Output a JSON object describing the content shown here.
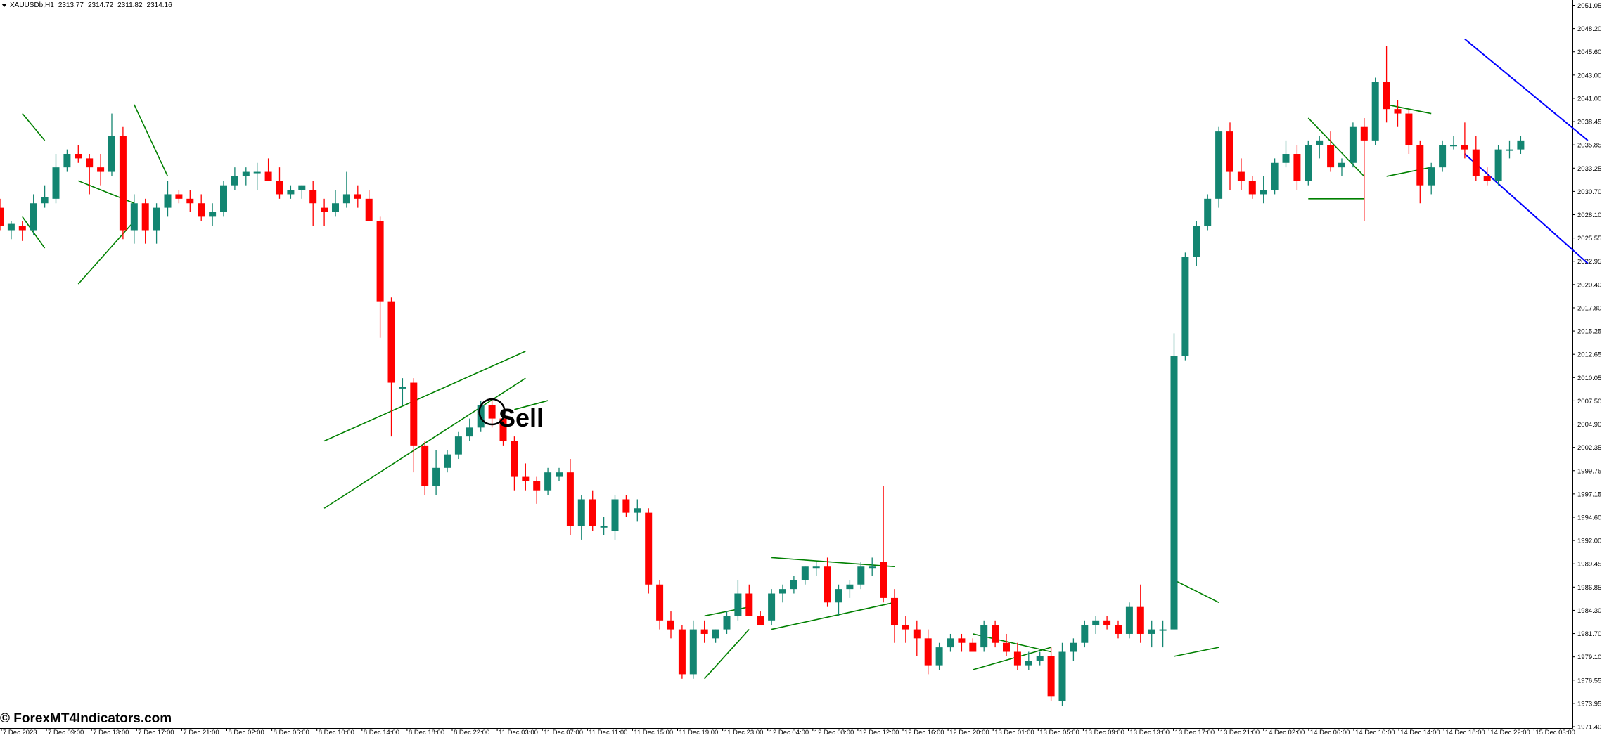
{
  "header": {
    "symbol": "XAUUSDb,H1",
    "ohlc": [
      "2313.77",
      "2314.72",
      "2311.82",
      "2314.16"
    ]
  },
  "watermark": "© ForexMT4Indicators.com",
  "signal_label": "Sell",
  "colors": {
    "bull": "#138571",
    "bear": "#ff0000",
    "pattern": "#008000",
    "channel": "#0000ff",
    "axis": "#000000",
    "background": "#ffffff"
  },
  "chart_data": {
    "type": "candlestick",
    "timeframe": "H1",
    "ylim": [
      1971.0,
      2052.0
    ],
    "y_ticks": [
      "2051.05",
      "2048.20",
      "2045.60",
      "2043.00",
      "2041.00",
      "2038.45",
      "2035.85",
      "2033.25",
      "2030.70",
      "2028.10",
      "2025.55",
      "2022.95",
      "2020.40",
      "2017.80",
      "2015.25",
      "2012.65",
      "2010.05",
      "2007.50",
      "2004.90",
      "2002.35",
      "1999.75",
      "1997.15",
      "1994.60",
      "1992.00",
      "1989.45",
      "1986.85",
      "1984.30",
      "1981.70",
      "1979.10",
      "1976.55",
      "1973.95",
      "1971.40"
    ],
    "x_ticks": [
      "7 Dec 2023",
      "7 Dec 09:00",
      "7 Dec 13:00",
      "7 Dec 17:00",
      "7 Dec 21:00",
      "8 Dec 02:00",
      "8 Dec 06:00",
      "8 Dec 10:00",
      "8 Dec 14:00",
      "8 Dec 18:00",
      "8 Dec 22:00",
      "11 Dec 03:00",
      "11 Dec 07:00",
      "11 Dec 11:00",
      "11 Dec 15:00",
      "11 Dec 19:00",
      "11 Dec 23:00",
      "12 Dec 04:00",
      "12 Dec 08:00",
      "12 Dec 12:00",
      "12 Dec 16:00",
      "12 Dec 20:00",
      "13 Dec 01:00",
      "13 Dec 05:00",
      "13 Dec 09:00",
      "13 Dec 13:00",
      "13 Dec 17:00",
      "13 Dec 21:00",
      "14 Dec 02:00",
      "14 Dec 06:00",
      "14 Dec 10:00",
      "14 Dec 14:00",
      "14 Dec 18:00",
      "14 Dec 22:00",
      "15 Dec 03:00"
    ],
    "candles": [
      [
        2029.0,
        2030.0,
        2026.5,
        2027.0
      ],
      [
        2026.5,
        2027.5,
        2025.5,
        2027.2
      ],
      [
        2027.0,
        2027.5,
        2025.3,
        2026.5
      ],
      [
        2026.5,
        2030.5,
        2026.0,
        2029.5
      ],
      [
        2029.5,
        2031.5,
        2029.0,
        2030.2
      ],
      [
        2030.0,
        2035.0,
        2029.5,
        2033.5
      ],
      [
        2033.5,
        2035.5,
        2033.0,
        2035.0
      ],
      [
        2035.0,
        2036.0,
        2034.0,
        2034.5
      ],
      [
        2034.5,
        2035.0,
        2030.5,
        2033.5
      ],
      [
        2033.5,
        2035.0,
        2031.5,
        2033.0
      ],
      [
        2033.0,
        2039.5,
        2032.5,
        2037.0
      ],
      [
        2037.0,
        2038.0,
        2025.5,
        2026.5
      ],
      [
        2026.5,
        2030.5,
        2025.0,
        2029.5
      ],
      [
        2029.5,
        2030.0,
        2025.0,
        2026.5
      ],
      [
        2026.5,
        2029.5,
        2025.0,
        2029.0
      ],
      [
        2029.0,
        2032.0,
        2028.0,
        2030.5
      ],
      [
        2030.5,
        2031.0,
        2029.5,
        2030.0
      ],
      [
        2030.0,
        2031.0,
        2028.5,
        2029.5
      ],
      [
        2029.5,
        2030.5,
        2027.5,
        2028.0
      ],
      [
        2028.0,
        2029.5,
        2027.0,
        2028.5
      ],
      [
        2028.5,
        2032.0,
        2028.0,
        2031.5
      ],
      [
        2031.5,
        2033.5,
        2031.0,
        2032.5
      ],
      [
        2032.5,
        2033.5,
        2031.5,
        2033.0
      ],
      [
        2033.0,
        2034.0,
        2031.0,
        2033.0
      ],
      [
        2033.0,
        2034.5,
        2032.0,
        2032.0
      ],
      [
        2032.0,
        2033.5,
        2030.0,
        2030.5
      ],
      [
        2030.5,
        2031.5,
        2030.0,
        2031.0
      ],
      [
        2031.0,
        2031.5,
        2030.0,
        2031.5
      ],
      [
        2031.0,
        2032.0,
        2027.0,
        2029.5
      ],
      [
        2029.0,
        2030.0,
        2027.0,
        2028.5
      ],
      [
        2028.5,
        2031.0,
        2028.0,
        2029.5
      ],
      [
        2029.5,
        2033.0,
        2029.0,
        2030.5
      ],
      [
        2030.5,
        2031.5,
        2029.0,
        2030.0
      ],
      [
        2030.0,
        2031.0,
        2027.5,
        2027.5
      ],
      [
        2027.5,
        2028.0,
        2014.5,
        2018.5
      ],
      [
        2018.5,
        2019.0,
        2003.5,
        2009.5
      ],
      [
        2009.0,
        2010.0,
        2007.0,
        2009.0
      ],
      [
        2009.5,
        2010.0,
        1999.5,
        2002.5
      ],
      [
        2002.5,
        2003.0,
        1997.0,
        1998.0
      ],
      [
        1998.0,
        2002.0,
        1997.0,
        2000.0
      ],
      [
        2000.0,
        2002.0,
        1999.5,
        2001.5
      ],
      [
        2001.5,
        2004.0,
        2001.0,
        2003.5
      ],
      [
        2003.5,
        2005.5,
        2003.0,
        2004.5
      ],
      [
        2004.5,
        2007.5,
        2004.0,
        2007.0
      ],
      [
        2007.0,
        2007.5,
        2004.5,
        2005.5
      ],
      [
        2005.5,
        2006.5,
        2002.5,
        2003.0
      ],
      [
        2003.0,
        2003.5,
        1997.5,
        1999.0
      ],
      [
        1999.0,
        2000.5,
        1997.5,
        1998.5
      ],
      [
        1998.5,
        1999.0,
        1996.0,
        1997.5
      ],
      [
        1997.5,
        2000.0,
        1997.0,
        1999.5
      ],
      [
        1999.0,
        2000.0,
        1998.5,
        1999.5
      ],
      [
        1999.5,
        2001.0,
        1992.5,
        1993.5
      ],
      [
        1993.5,
        1997.0,
        1992.0,
        1996.5
      ],
      [
        1996.5,
        1997.5,
        1993.0,
        1993.5
      ],
      [
        1993.5,
        1994.5,
        1992.5,
        1993.5
      ],
      [
        1993.0,
        1997.0,
        1992.0,
        1996.5
      ],
      [
        1996.5,
        1997.0,
        1994.5,
        1995.0
      ],
      [
        1995.0,
        1996.5,
        1994.0,
        1995.5
      ],
      [
        1995.0,
        1995.5,
        1986.0,
        1987.0
      ],
      [
        1987.0,
        1987.5,
        1982.0,
        1983.0
      ],
      [
        1983.0,
        1984.0,
        1981.0,
        1982.0
      ],
      [
        1982.0,
        1982.5,
        1976.5,
        1977.0
      ],
      [
        1977.0,
        1983.0,
        1976.5,
        1982.0
      ],
      [
        1982.0,
        1983.0,
        1980.5,
        1981.5
      ],
      [
        1981.0,
        1982.0,
        1980.5,
        1982.0
      ],
      [
        1982.0,
        1984.0,
        1981.5,
        1983.5
      ],
      [
        1983.5,
        1987.5,
        1983.0,
        1986.0
      ],
      [
        1986.0,
        1987.0,
        1983.5,
        1983.5
      ],
      [
        1983.5,
        1984.0,
        1982.5,
        1982.5
      ],
      [
        1983.0,
        1986.5,
        1982.5,
        1986.0
      ],
      [
        1986.0,
        1987.0,
        1985.0,
        1986.5
      ],
      [
        1986.5,
        1988.0,
        1986.0,
        1987.5
      ],
      [
        1987.5,
        1989.0,
        1987.0,
        1989.0
      ],
      [
        1989.0,
        1989.5,
        1988.0,
        1989.0
      ],
      [
        1989.0,
        1990.0,
        1984.5,
        1985.0
      ],
      [
        1985.0,
        1987.0,
        1983.5,
        1986.5
      ],
      [
        1986.5,
        1987.5,
        1985.5,
        1987.0
      ],
      [
        1987.0,
        1989.5,
        1986.5,
        1989.0
      ],
      [
        1989.0,
        1990.0,
        1988.0,
        1989.0
      ],
      [
        1989.5,
        1998.0,
        1985.0,
        1985.5
      ],
      [
        1985.5,
        1986.5,
        1980.5,
        1982.5
      ],
      [
        1982.5,
        1983.5,
        1980.5,
        1982.0
      ],
      [
        1982.0,
        1983.0,
        1979.0,
        1981.0
      ],
      [
        1981.0,
        1982.0,
        1977.0,
        1978.0
      ],
      [
        1978.0,
        1980.5,
        1977.5,
        1980.0
      ],
      [
        1980.0,
        1981.5,
        1979.5,
        1981.0
      ],
      [
        1981.0,
        1981.5,
        1979.5,
        1980.5
      ],
      [
        1980.5,
        1981.0,
        1979.5,
        1979.5
      ],
      [
        1980.0,
        1983.0,
        1979.5,
        1982.5
      ],
      [
        1982.5,
        1983.0,
        1980.0,
        1980.5
      ],
      [
        1980.5,
        1981.5,
        1979.0,
        1979.5
      ],
      [
        1979.5,
        1980.5,
        1977.5,
        1978.0
      ],
      [
        1978.0,
        1979.5,
        1977.5,
        1978.5
      ],
      [
        1978.5,
        1979.5,
        1978.0,
        1979.0
      ],
      [
        1979.0,
        1980.0,
        1974.0,
        1974.5
      ],
      [
        1974.0,
        1980.5,
        1973.5,
        1979.5
      ],
      [
        1979.5,
        1981.0,
        1978.5,
        1980.5
      ],
      [
        1980.5,
        1983.0,
        1980.0,
        1982.5
      ],
      [
        1982.5,
        1983.5,
        1981.5,
        1983.0
      ],
      [
        1983.0,
        1983.5,
        1982.0,
        1982.5
      ],
      [
        1982.5,
        1983.0,
        1981.0,
        1981.5
      ],
      [
        1981.5,
        1985.0,
        1981.0,
        1984.5
      ],
      [
        1984.5,
        1987.0,
        1980.5,
        1981.5
      ],
      [
        1981.5,
        1983.0,
        1980.0,
        1982.0
      ],
      [
        1982.0,
        1983.0,
        1980.0,
        1982.0
      ],
      [
        1982.0,
        2015.0,
        1982.0,
        2012.5
      ],
      [
        2012.5,
        2024.0,
        2012.0,
        2023.5
      ],
      [
        2023.5,
        2027.5,
        2022.5,
        2027.0
      ],
      [
        2027.0,
        2030.5,
        2026.5,
        2030.0
      ],
      [
        2030.0,
        2038.0,
        2029.0,
        2037.5
      ],
      [
        2037.5,
        2038.5,
        2031.0,
        2033.0
      ],
      [
        2033.0,
        2034.5,
        2031.0,
        2032.0
      ],
      [
        2032.0,
        2032.5,
        2030.0,
        2030.5
      ],
      [
        2030.5,
        2032.5,
        2029.5,
        2031.0
      ],
      [
        2031.0,
        2034.5,
        2030.5,
        2034.0
      ],
      [
        2034.0,
        2036.5,
        2033.5,
        2035.0
      ],
      [
        2035.0,
        2036.0,
        2031.0,
        2032.0
      ],
      [
        2032.0,
        2036.5,
        2031.5,
        2036.0
      ],
      [
        2036.0,
        2037.0,
        2034.5,
        2036.5
      ],
      [
        2036.0,
        2037.5,
        2033.0,
        2033.5
      ],
      [
        2033.5,
        2034.5,
        2032.5,
        2034.0
      ],
      [
        2034.0,
        2038.5,
        2033.5,
        2038.0
      ],
      [
        2038.0,
        2039.0,
        2027.5,
        2036.5
      ],
      [
        2036.5,
        2043.5,
        2036.0,
        2043.0
      ],
      [
        2043.0,
        2047.0,
        2038.5,
        2040.0
      ],
      [
        2040.0,
        2041.0,
        2038.0,
        2039.5
      ],
      [
        2039.5,
        2040.0,
        2035.0,
        2036.0
      ],
      [
        2036.0,
        2036.5,
        2029.5,
        2031.5
      ],
      [
        2031.5,
        2034.0,
        2030.5,
        2033.5
      ],
      [
        2033.5,
        2036.5,
        2033.0,
        2036.0
      ],
      [
        2036.0,
        2037.0,
        2035.5,
        2036.0
      ],
      [
        2036.0,
        2038.5,
        2034.5,
        2035.5
      ],
      [
        2035.5,
        2037.0,
        2032.0,
        2032.5
      ],
      [
        2032.5,
        2033.5,
        2031.5,
        2032.0
      ],
      [
        2032.0,
        2036.0,
        2031.5,
        2035.5
      ],
      [
        2035.5,
        2036.5,
        2034.5,
        2035.5
      ],
      [
        2035.5,
        2037.0,
        2035.0,
        2036.5
      ]
    ],
    "pattern_lines": [
      [
        [
          2,
          2039.5
        ],
        [
          4,
          2036.5
        ]
      ],
      [
        [
          2,
          2028.0
        ],
        [
          4,
          2024.5
        ]
      ],
      [
        [
          7,
          2032.0
        ],
        [
          12,
          2029.5
        ]
      ],
      [
        [
          7,
          2020.5
        ],
        [
          12,
          2027.5
        ]
      ],
      [
        [
          12,
          2040.5
        ],
        [
          15,
          2032.5
        ]
      ],
      [
        [
          29,
          2003.0
        ],
        [
          47,
          2013.0
        ]
      ],
      [
        [
          29,
          1995.5
        ],
        [
          47,
          2010.0
        ]
      ],
      [
        [
          46,
          2006.5
        ],
        [
          49,
          2007.5
        ]
      ],
      [
        [
          63,
          1983.5
        ],
        [
          67,
          1984.5
        ]
      ],
      [
        [
          63,
          1976.5
        ],
        [
          67,
          1982.0
        ]
      ],
      [
        [
          69,
          1990.0
        ],
        [
          80,
          1989.0
        ]
      ],
      [
        [
          69,
          1982.0
        ],
        [
          80,
          1985.0
        ]
      ],
      [
        [
          87,
          1981.5
        ],
        [
          94,
          1979.5
        ]
      ],
      [
        [
          87,
          1977.5
        ],
        [
          94,
          1980.0
        ]
      ],
      [
        [
          105,
          1987.5
        ],
        [
          109,
          1985.0
        ]
      ],
      [
        [
          105,
          1979.0
        ],
        [
          109,
          1980.0
        ]
      ],
      [
        [
          117,
          2039.0
        ],
        [
          122,
          2032.5
        ]
      ],
      [
        [
          117,
          2030.0
        ],
        [
          122,
          2030.0
        ]
      ],
      [
        [
          124,
          2040.5
        ],
        [
          128,
          2039.5
        ]
      ],
      [
        [
          124,
          2032.5
        ],
        [
          128,
          2033.5
        ]
      ]
    ],
    "channel_lines": [
      [
        [
          131,
          2047.8
        ],
        [
          142,
          2036.5
        ]
      ],
      [
        [
          131,
          2035.0
        ],
        [
          142,
          2022.8
        ]
      ]
    ],
    "signal_candle": 44
  }
}
